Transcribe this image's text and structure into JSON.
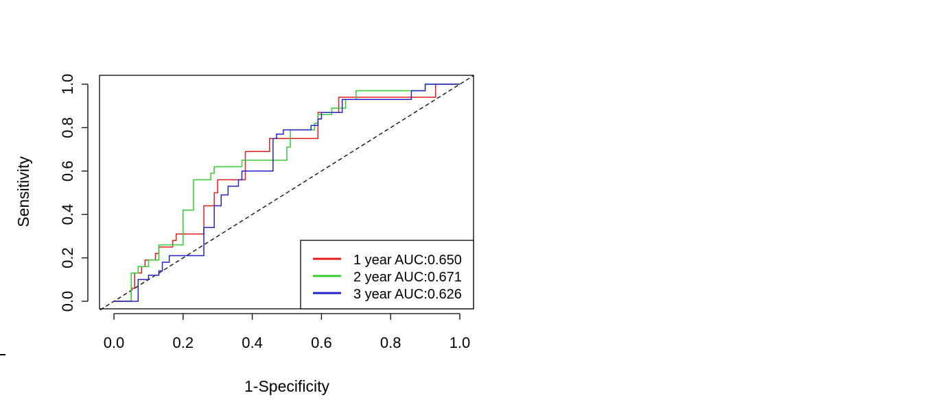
{
  "chart_data": {
    "type": "line",
    "title": "",
    "xlabel": "1-Specificity",
    "ylabel": "Sensitivity",
    "xlim": [
      0.0,
      1.0
    ],
    "ylim": [
      0.0,
      1.0
    ],
    "x_ticks": [
      "0.0",
      "0.2",
      "0.4",
      "0.6",
      "0.8",
      "1.0"
    ],
    "y_ticks": [
      "0.0",
      "0.2",
      "0.4",
      "0.6",
      "0.8",
      "1.0"
    ],
    "legend_position": "bottom-right",
    "grid": false,
    "reference_line": {
      "style": "dashed",
      "color": "#000000",
      "from": [
        0,
        0
      ],
      "to": [
        1,
        1
      ]
    },
    "series": [
      {
        "name": "1 year AUC:0.650",
        "color": "#e41a1c",
        "points": [
          [
            0.0,
            0.0
          ],
          [
            0.05,
            0.0
          ],
          [
            0.05,
            0.06
          ],
          [
            0.06,
            0.06
          ],
          [
            0.06,
            0.13
          ],
          [
            0.08,
            0.13
          ],
          [
            0.08,
            0.16
          ],
          [
            0.09,
            0.16
          ],
          [
            0.09,
            0.19
          ],
          [
            0.12,
            0.19
          ],
          [
            0.12,
            0.22
          ],
          [
            0.13,
            0.22
          ],
          [
            0.13,
            0.25
          ],
          [
            0.17,
            0.25
          ],
          [
            0.17,
            0.28
          ],
          [
            0.18,
            0.28
          ],
          [
            0.18,
            0.31
          ],
          [
            0.26,
            0.31
          ],
          [
            0.26,
            0.44
          ],
          [
            0.29,
            0.44
          ],
          [
            0.29,
            0.5
          ],
          [
            0.3,
            0.5
          ],
          [
            0.3,
            0.56
          ],
          [
            0.38,
            0.56
          ],
          [
            0.38,
            0.62
          ],
          [
            0.38,
            0.69
          ],
          [
            0.45,
            0.69
          ],
          [
            0.45,
            0.75
          ],
          [
            0.59,
            0.75
          ],
          [
            0.59,
            0.87
          ],
          [
            0.65,
            0.87
          ],
          [
            0.65,
            0.94
          ],
          [
            0.93,
            0.94
          ],
          [
            0.93,
            1.0
          ],
          [
            1.0,
            1.0
          ]
        ]
      },
      {
        "name": "2 year AUC:0.671",
        "color": "#33cc33",
        "points": [
          [
            0.0,
            0.0
          ],
          [
            0.05,
            0.0
          ],
          [
            0.05,
            0.13
          ],
          [
            0.07,
            0.13
          ],
          [
            0.07,
            0.16
          ],
          [
            0.1,
            0.16
          ],
          [
            0.1,
            0.19
          ],
          [
            0.13,
            0.19
          ],
          [
            0.13,
            0.26
          ],
          [
            0.2,
            0.26
          ],
          [
            0.2,
            0.42
          ],
          [
            0.23,
            0.42
          ],
          [
            0.23,
            0.56
          ],
          [
            0.28,
            0.56
          ],
          [
            0.28,
            0.59
          ],
          [
            0.29,
            0.59
          ],
          [
            0.29,
            0.62
          ],
          [
            0.37,
            0.62
          ],
          [
            0.37,
            0.65
          ],
          [
            0.5,
            0.65
          ],
          [
            0.5,
            0.71
          ],
          [
            0.51,
            0.71
          ],
          [
            0.51,
            0.79
          ],
          [
            0.58,
            0.79
          ],
          [
            0.58,
            0.82
          ],
          [
            0.59,
            0.82
          ],
          [
            0.59,
            0.86
          ],
          [
            0.63,
            0.86
          ],
          [
            0.63,
            0.89
          ],
          [
            0.67,
            0.89
          ],
          [
            0.67,
            0.93
          ],
          [
            0.7,
            0.93
          ],
          [
            0.7,
            0.97
          ],
          [
            0.9,
            0.97
          ],
          [
            0.9,
            1.0
          ],
          [
            1.0,
            1.0
          ]
        ]
      },
      {
        "name": "3 year AUC:0.626",
        "color": "#2222cc",
        "points": [
          [
            0.0,
            0.0
          ],
          [
            0.07,
            0.0
          ],
          [
            0.07,
            0.1
          ],
          [
            0.1,
            0.1
          ],
          [
            0.1,
            0.12
          ],
          [
            0.13,
            0.12
          ],
          [
            0.13,
            0.14
          ],
          [
            0.14,
            0.14
          ],
          [
            0.14,
            0.18
          ],
          [
            0.16,
            0.18
          ],
          [
            0.16,
            0.21
          ],
          [
            0.26,
            0.21
          ],
          [
            0.26,
            0.34
          ],
          [
            0.29,
            0.34
          ],
          [
            0.29,
            0.44
          ],
          [
            0.31,
            0.44
          ],
          [
            0.31,
            0.49
          ],
          [
            0.33,
            0.49
          ],
          [
            0.33,
            0.53
          ],
          [
            0.36,
            0.53
          ],
          [
            0.36,
            0.56
          ],
          [
            0.37,
            0.56
          ],
          [
            0.37,
            0.6
          ],
          [
            0.46,
            0.6
          ],
          [
            0.46,
            0.75
          ],
          [
            0.47,
            0.75
          ],
          [
            0.47,
            0.77
          ],
          [
            0.49,
            0.77
          ],
          [
            0.49,
            0.79
          ],
          [
            0.57,
            0.79
          ],
          [
            0.57,
            0.81
          ],
          [
            0.59,
            0.81
          ],
          [
            0.59,
            0.84
          ],
          [
            0.6,
            0.84
          ],
          [
            0.6,
            0.87
          ],
          [
            0.66,
            0.87
          ],
          [
            0.66,
            0.93
          ],
          [
            0.86,
            0.93
          ],
          [
            0.86,
            0.97
          ],
          [
            0.9,
            0.97
          ],
          [
            0.9,
            1.0
          ],
          [
            1.0,
            1.0
          ]
        ]
      }
    ]
  }
}
